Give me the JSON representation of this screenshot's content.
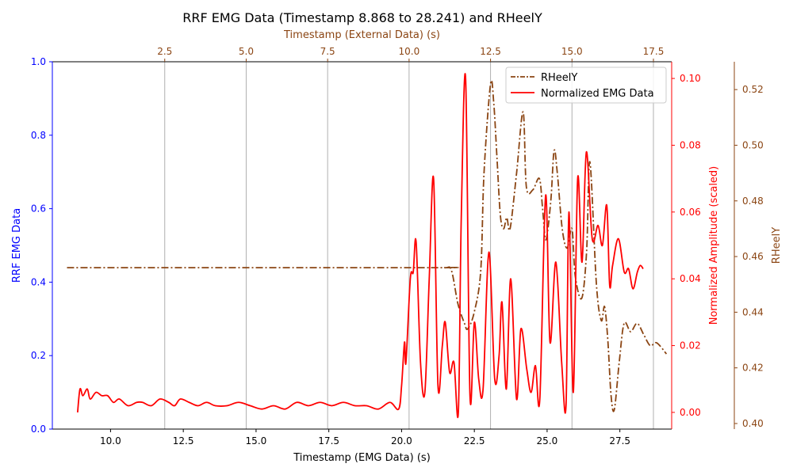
{
  "chart_data": {
    "type": "line",
    "title": "RRF EMG Data (Timestamp 8.868 to 28.241) and RHeelY",
    "grid": "vertical lines at top-axis ticks",
    "legend_position": "top-right",
    "axes": {
      "x_bottom": {
        "label": "Timestamp (EMG Data) (s)",
        "range": [
          8.0,
          29.28
        ],
        "ticks": [
          "10.0",
          "12.5",
          "15.0",
          "17.5",
          "20.0",
          "22.5",
          "25.0",
          "27.5"
        ]
      },
      "x_top": {
        "label": "Timestamp (External Data) (s)",
        "range": [
          -0.95,
          18.06
        ],
        "ticks": [
          "2.5",
          "5.0",
          "7.5",
          "10.0",
          "12.5",
          "15.0",
          "17.5"
        ],
        "color": "#8B4513"
      },
      "y_left": {
        "label": "RRF EMG Data",
        "range": [
          0.0,
          1.0
        ],
        "ticks": [
          "0.0",
          "0.2",
          "0.4",
          "0.6",
          "0.8",
          "1.0"
        ],
        "color": "#0000ff"
      },
      "y_right1": {
        "label": "Normalized Amplitude (scaled)",
        "range": [
          -0.005,
          0.105
        ],
        "ticks": [
          "0.00",
          "0.02",
          "0.04",
          "0.06",
          "0.08",
          "0.10"
        ],
        "color": "#ff0000"
      },
      "y_right2": {
        "label": "RHeelY",
        "range": [
          0.398,
          0.53
        ],
        "ticks": [
          "0.40",
          "0.42",
          "0.44",
          "0.46",
          "0.48",
          "0.50",
          "0.52"
        ],
        "color": "#8B4513"
      }
    },
    "legend": [
      "RHeelY",
      "Normalized EMG Data"
    ],
    "series": [
      {
        "name": "RHeelY",
        "axis": "x_top/y_right2",
        "color": "#8B4513",
        "style": "dashdot",
        "x": [
          -0.5,
          10.5,
          11.1,
          11.3,
          11.5,
          11.7,
          11.8,
          12.0,
          12.2,
          12.3,
          12.5,
          12.6,
          12.7,
          12.8,
          12.9,
          13.0,
          13.1,
          13.3,
          13.5,
          13.6,
          13.8,
          14.0,
          14.1,
          14.2,
          14.35,
          14.45,
          14.55,
          14.7,
          14.85,
          15.0,
          15.1,
          15.3,
          15.45,
          15.55,
          15.75,
          15.9,
          16.0,
          16.1,
          16.2,
          16.3,
          16.45,
          16.6,
          16.8,
          17.0,
          17.2,
          17.4,
          17.6,
          17.9
        ],
        "y": [
          0.456,
          0.456,
          0.456,
          0.455,
          0.443,
          0.436,
          0.434,
          0.44,
          0.455,
          0.49,
          0.522,
          0.515,
          0.495,
          0.475,
          0.47,
          0.474,
          0.47,
          0.49,
          0.512,
          0.485,
          0.484,
          0.488,
          0.477,
          0.466,
          0.48,
          0.498,
          0.49,
          0.47,
          0.463,
          0.47,
          0.453,
          0.445,
          0.462,
          0.494,
          0.45,
          0.437,
          0.442,
          0.43,
          0.41,
          0.405,
          0.422,
          0.436,
          0.433,
          0.436,
          0.432,
          0.428,
          0.429,
          0.425
        ],
        "x_dense": [],
        "y_dense": []
      },
      {
        "name": "Normalized EMG Data",
        "axis": "x_bottom/y_right1",
        "color": "#ff0000",
        "style": "solid",
        "x": [
          8.868,
          8.95,
          9.05,
          9.2,
          9.3,
          9.5,
          9.7,
          9.9,
          10.1,
          10.3,
          10.6,
          10.9,
          11.1,
          11.4,
          11.7,
          12.0,
          12.2,
          12.4,
          12.7,
          13.0,
          13.3,
          13.6,
          14.0,
          14.4,
          14.8,
          15.2,
          15.6,
          16.0,
          16.4,
          16.8,
          17.2,
          17.6,
          18.0,
          18.4,
          18.8,
          19.2,
          19.6,
          19.9,
          20.0,
          20.1,
          20.15,
          20.3,
          20.4,
          20.5,
          20.65,
          20.8,
          20.95,
          21.1,
          21.25,
          21.4,
          21.5,
          21.65,
          21.8,
          21.95,
          22.05,
          22.2,
          22.35,
          22.5,
          22.65,
          22.8,
          23.0,
          23.2,
          23.35,
          23.45,
          23.6,
          23.75,
          23.95,
          24.1,
          24.3,
          24.45,
          24.6,
          24.75,
          24.95,
          25.1,
          25.3,
          25.5,
          25.65,
          25.75,
          25.9,
          26.05,
          26.2,
          26.35,
          26.55,
          26.75,
          26.9,
          27.05,
          27.15,
          27.25,
          27.45,
          27.65,
          27.8,
          27.95,
          28.1,
          28.2,
          28.3
        ],
        "y": [
          0.0,
          0.007,
          0.005,
          0.007,
          0.004,
          0.006,
          0.005,
          0.005,
          0.003,
          0.004,
          0.002,
          0.003,
          0.003,
          0.002,
          0.004,
          0.003,
          0.002,
          0.004,
          0.003,
          0.002,
          0.003,
          0.002,
          0.002,
          0.003,
          0.002,
          0.001,
          0.002,
          0.001,
          0.003,
          0.002,
          0.003,
          0.002,
          0.003,
          0.002,
          0.002,
          0.001,
          0.003,
          0.001,
          0.008,
          0.021,
          0.015,
          0.04,
          0.042,
          0.051,
          0.015,
          0.006,
          0.04,
          0.07,
          0.008,
          0.02,
          0.027,
          0.012,
          0.015,
          0.0,
          0.058,
          0.1,
          0.005,
          0.027,
          0.01,
          0.007,
          0.048,
          0.01,
          0.017,
          0.033,
          0.007,
          0.04,
          0.004,
          0.025,
          0.013,
          0.006,
          0.014,
          0.004,
          0.065,
          0.021,
          0.045,
          0.015,
          0.002,
          0.06,
          0.006,
          0.07,
          0.045,
          0.078,
          0.052,
          0.056,
          0.05,
          0.062,
          0.038,
          0.044,
          0.052,
          0.042,
          0.043,
          0.037,
          0.042,
          0.044,
          0.043
        ]
      }
    ]
  }
}
